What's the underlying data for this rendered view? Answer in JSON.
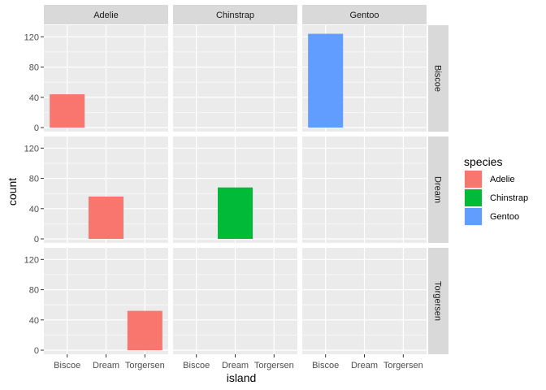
{
  "chart_data": {
    "type": "bar",
    "facet_cols": [
      "Adelie",
      "Chinstrap",
      "Gentoo"
    ],
    "facet_rows": [
      "Biscoe",
      "Dream",
      "Torgersen"
    ],
    "categories": [
      "Biscoe",
      "Dream",
      "Torgersen"
    ],
    "xlabel": "island",
    "ylabel": "count",
    "ylim": [
      0,
      130
    ],
    "yticks": [
      0,
      40,
      80,
      120
    ],
    "legend": {
      "title": "species",
      "placement": "right",
      "entries": [
        {
          "name": "Adelie",
          "color": "#F8766D"
        },
        {
          "name": "Chinstrap",
          "color": "#00BA38"
        },
        {
          "name": "Gentoo",
          "color": "#619CFF"
        }
      ]
    },
    "bars": [
      {
        "species": "Adelie",
        "island": "Biscoe",
        "x": "Biscoe",
        "count": 44
      },
      {
        "species": "Adelie",
        "island": "Dream",
        "x": "Dream",
        "count": 56
      },
      {
        "species": "Adelie",
        "island": "Torgersen",
        "x": "Torgersen",
        "count": 52
      },
      {
        "species": "Chinstrap",
        "island": "Dream",
        "x": "Dream",
        "count": 68
      },
      {
        "species": "Gentoo",
        "island": "Biscoe",
        "x": "Biscoe",
        "count": 124
      }
    ],
    "grid": true,
    "panel_background": "#EBEBEB",
    "strip_background": "#D9D9D9"
  }
}
